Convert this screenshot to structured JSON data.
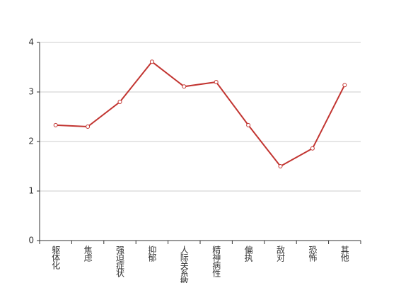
{
  "chart_data": {
    "type": "line",
    "categories": [
      "躯体化",
      "焦虑",
      "强迫症状",
      "抑郁",
      "人际关系敏感",
      "精神病性",
      "偏执",
      "敌对",
      "恐怖",
      "其他"
    ],
    "series": [
      {
        "color": "#c23531",
        "values": [
          2.33,
          2.3,
          2.8,
          3.61,
          3.11,
          3.2,
          2.33,
          1.5,
          1.86,
          3.14
        ]
      }
    ],
    "ylim": [
      0,
      4
    ],
    "yticks": [
      0,
      1,
      2,
      3,
      4
    ],
    "grid": true
  }
}
